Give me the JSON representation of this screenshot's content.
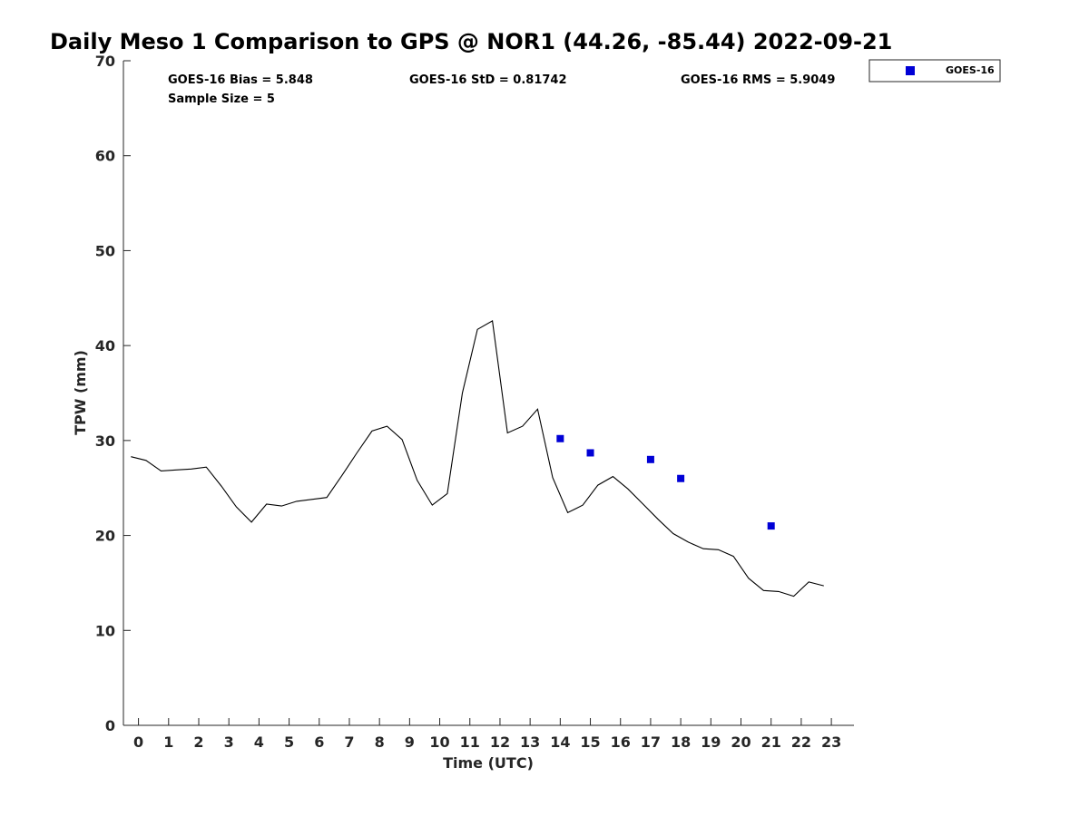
{
  "chart_data": {
    "type": "line",
    "title": "Daily Meso 1 Comparison to GPS @ NOR1 (44.26, -85.44) 2022-09-21",
    "xlabel": "Time (UTC)",
    "ylabel": "TPW (mm)",
    "xlim": [
      -0.5,
      23.75
    ],
    "ylim": [
      0,
      70
    ],
    "xticks": [
      0,
      1,
      2,
      3,
      4,
      5,
      6,
      7,
      8,
      9,
      10,
      11,
      12,
      13,
      14,
      15,
      16,
      17,
      18,
      19,
      20,
      21,
      22,
      23
    ],
    "yticks": [
      0,
      10,
      20,
      30,
      40,
      50,
      60,
      70
    ],
    "grid": false,
    "legend_position": "outside-top-right",
    "stats": {
      "bias": "GOES-16 Bias = 5.848",
      "std": "GOES-16 StD = 0.81742",
      "rms": "GOES-16 RMS = 5.9049",
      "sample": "Sample Size = 5"
    },
    "series": [
      {
        "kind": "line",
        "color": "#000000",
        "x": [
          -0.25,
          0.25,
          0.75,
          1.25,
          1.75,
          2.25,
          2.75,
          3.25,
          3.75,
          4.25,
          4.75,
          5.25,
          5.75,
          6.25,
          6.75,
          7.25,
          7.75,
          8.25,
          8.75,
          9.25,
          9.75,
          10.25,
          10.75,
          11.25,
          11.75,
          12.25,
          12.75,
          13.25,
          13.75,
          14.25,
          14.75,
          15.25,
          15.75,
          16.25,
          16.75,
          17.25,
          17.75,
          18.25,
          18.75,
          19.25,
          19.75,
          20.25,
          20.75,
          21.25,
          21.75,
          22.25,
          22.75
        ],
        "y": [
          28.3,
          27.9,
          26.8,
          26.9,
          27.0,
          27.2,
          25.2,
          23.0,
          21.4,
          23.3,
          23.1,
          23.6,
          23.8,
          24.0,
          26.3,
          28.7,
          31.0,
          31.5,
          30.1,
          25.8,
          23.2,
          24.4,
          35.0,
          41.7,
          42.6,
          30.8,
          31.5,
          33.3,
          26.1,
          22.4,
          23.2,
          25.3,
          26.2,
          24.9,
          23.3,
          21.7,
          20.2,
          19.3,
          18.6,
          18.5,
          17.8,
          15.5,
          14.2,
          14.1,
          13.6,
          15.1,
          14.7
        ]
      },
      {
        "name": "GOES-16",
        "kind": "scatter",
        "marker": "square",
        "color": "#0000d6",
        "x": [
          14,
          15,
          17,
          18,
          21
        ],
        "y": [
          30.2,
          28.7,
          28.0,
          26.0,
          21.0
        ]
      }
    ]
  }
}
